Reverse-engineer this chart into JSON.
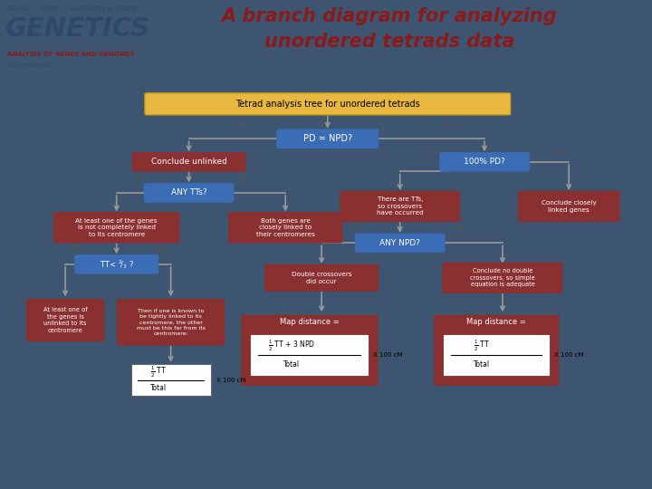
{
  "title_line1": "A branch diagram for analyzing",
  "title_line2": "unordered tetrads data",
  "title_color": "#8B1A1A",
  "header_bg": "#F5F0C8",
  "main_bg": "#3D5570",
  "diagram_bg": "#FFFFFF",
  "genetics_text": "GENETICS",
  "genetics_color": "#2B4A6B",
  "subtitle_text": "ANALYSIS OF GENES AND GENOMES",
  "subtitle_color": "#8B1A1A",
  "edition_text": "SIXTH EDITION",
  "authors_text": "DANIEL L. HARTL  ·  ELIZABETH W. JONES",
  "blue_box_color": "#3A6DB5",
  "red_box_color": "#8B3030",
  "arrow_color": "#999999",
  "diagram_title": "Tetrad analysis tree for unordered tetrads",
  "diagram_title_bg": "#E8B840"
}
